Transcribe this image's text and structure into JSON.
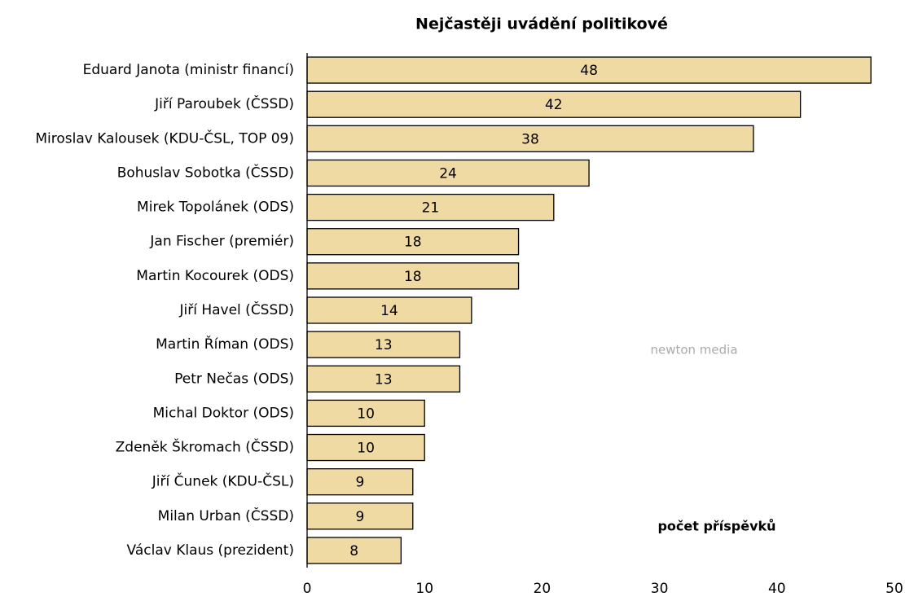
{
  "chart_data": {
    "type": "bar",
    "orientation": "horizontal",
    "title": "Nejčastěji uvádění politikové",
    "annotation": "počet příspěvků",
    "watermark": "newton media",
    "categories": [
      "Eduard Janota (ministr financí)",
      "Jiří Paroubek (ČSSD)",
      "Miroslav Kalousek (KDU-ČSL, TOP 09)",
      "Bohuslav Sobotka (ČSSD)",
      "Mirek Topolánek (ODS)",
      "Jan Fischer (premiér)",
      "Martin Kocourek (ODS)",
      "Jiří Havel (ČSSD)",
      "Martin Říman (ODS)",
      "Petr Nečas (ODS)",
      "Michal Doktor (ODS)",
      "Zdeněk Škromach (ČSSD)",
      "Jiří Čunek (KDU-ČSL)",
      "Milan Urban (ČSSD)",
      "Václav Klaus (prezident)"
    ],
    "values": [
      48,
      42,
      38,
      24,
      21,
      18,
      18,
      14,
      13,
      13,
      10,
      10,
      9,
      9,
      8
    ],
    "color": "#f0daa4",
    "xlim": [
      0,
      50
    ],
    "xticks": [
      0,
      10,
      20,
      30,
      40,
      50
    ],
    "grid": false
  }
}
